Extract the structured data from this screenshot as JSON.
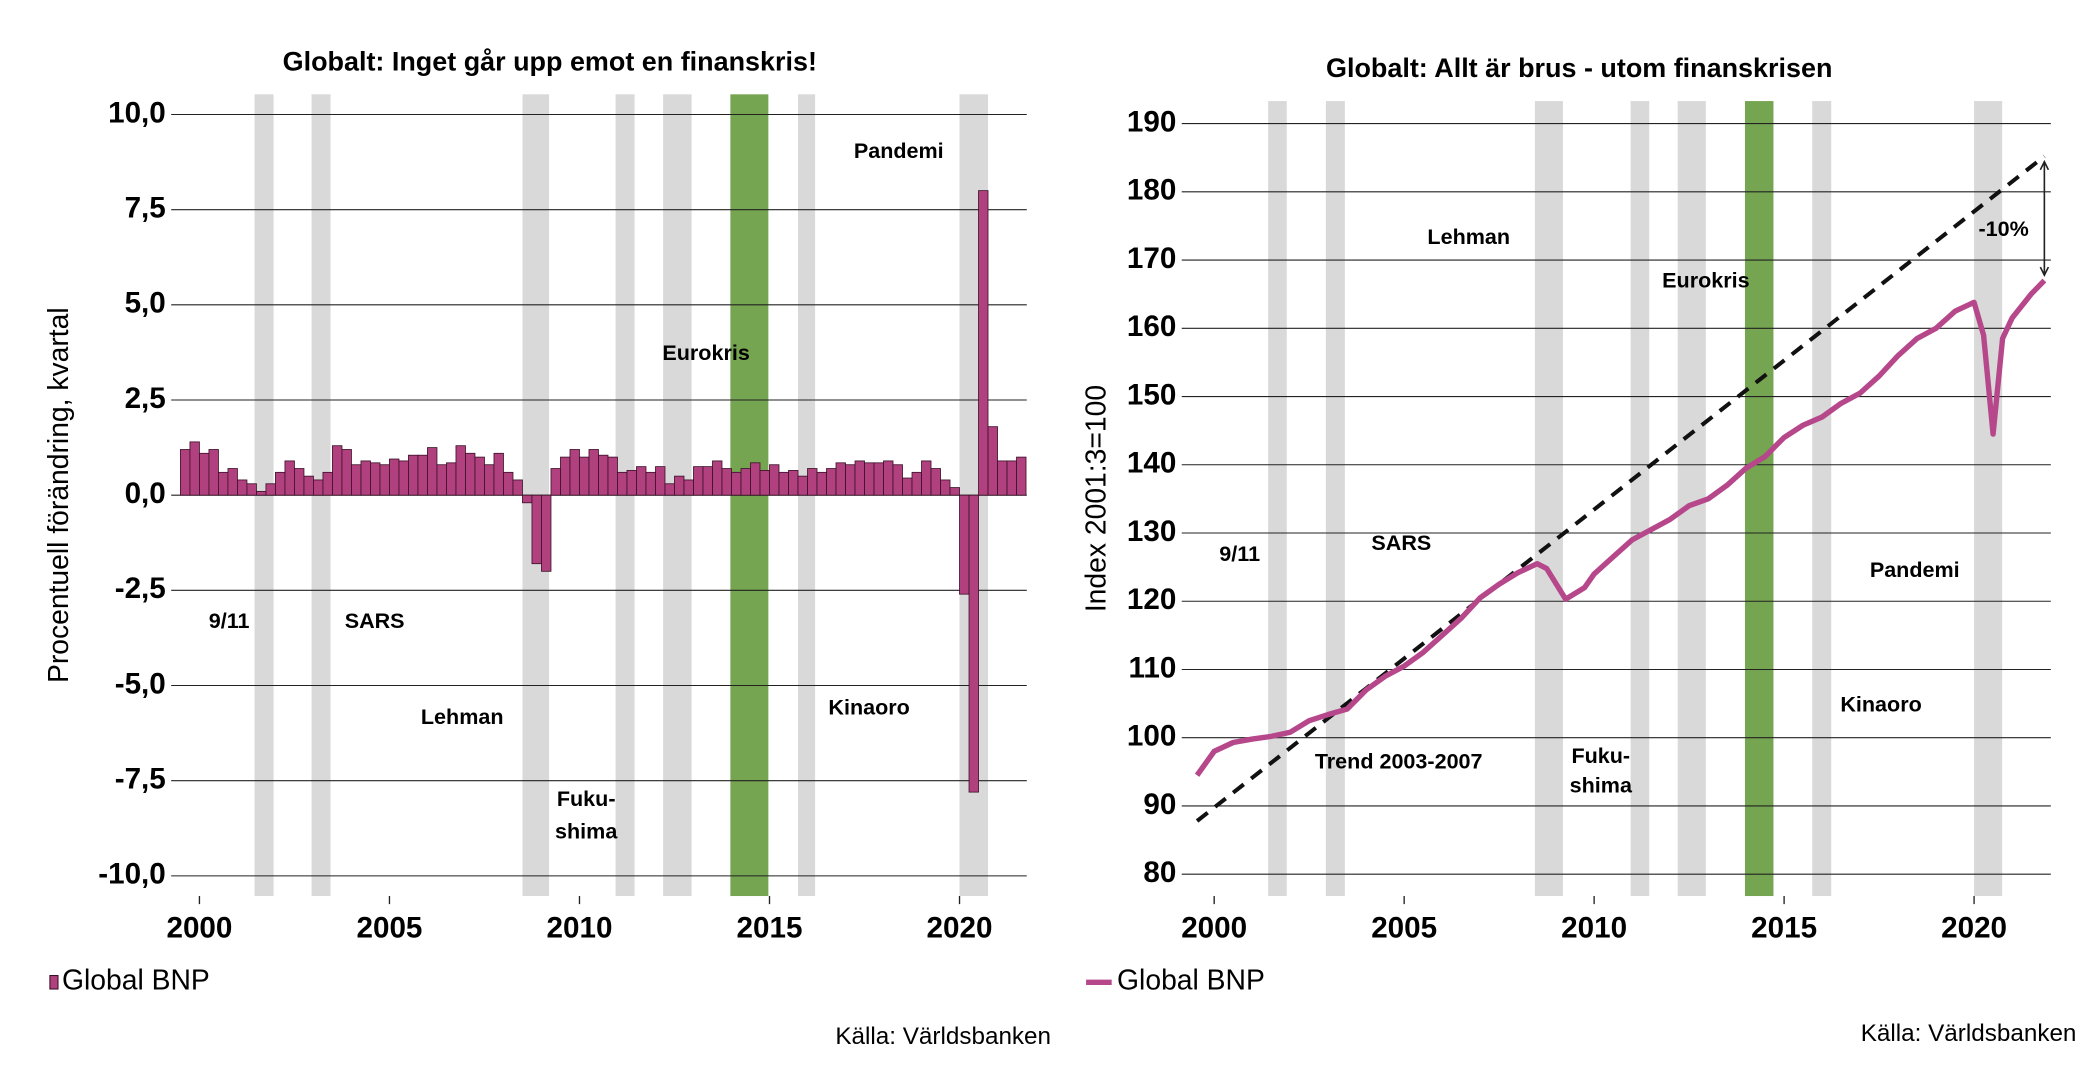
{
  "chart_data": [
    {
      "type": "bar",
      "title": "Globalt: Inget går upp emot en finanskris!",
      "ylabel": "Procentuell förändring, kvartal",
      "source": "Källa: Världsbanken",
      "xlim": [
        1999.54,
        2021.77
      ],
      "xticks": [
        2000,
        2005,
        2010,
        2015,
        2020
      ],
      "ylim": [
        -10.53,
        10.53
      ],
      "yticks": [
        {
          "value": -10,
          "label": "-10,0"
        },
        {
          "value": -7.5,
          "label": "-7,5"
        },
        {
          "value": -5,
          "label": "-5,0"
        },
        {
          "value": -2.5,
          "label": "-2,5"
        },
        {
          "value": 0,
          "label": "0,0"
        },
        {
          "value": 2.5,
          "label": "2,5"
        },
        {
          "value": 5,
          "label": "5,0"
        },
        {
          "value": 7.5,
          "label": "7,5"
        },
        {
          "value": 10,
          "label": "10,0"
        }
      ],
      "grid": true,
      "shaded_periods": [
        {
          "start": 2001.45,
          "end": 2001.95,
          "color": "#d9d9d9"
        },
        {
          "start": 2002.95,
          "end": 2003.45,
          "color": "#d9d9d9"
        },
        {
          "start": 2008.5,
          "end": 2009.2,
          "color": "#d9d9d9"
        },
        {
          "start": 2010.95,
          "end": 2011.45,
          "color": "#d9d9d9"
        },
        {
          "start": 2012.2,
          "end": 2012.95,
          "color": "#d9d9d9"
        },
        {
          "start": 2013.97,
          "end": 2014.97,
          "color": "#76a552"
        },
        {
          "start": 2015.75,
          "end": 2016.2,
          "color": "#d9d9d9"
        },
        {
          "start": 2020.0,
          "end": 2020.75,
          "color": "#d9d9d9"
        }
      ],
      "annotations": [
        "9/11",
        "SARS",
        "Lehman",
        "Fuku-",
        "shima",
        "Eurokris",
        "Kinaoro",
        "Pandemi"
      ],
      "series": [
        {
          "name": "Global BNP",
          "color": "#b0407e",
          "x": [
            1999.5,
            1999.75,
            2000,
            2000.25,
            2000.5,
            2000.75,
            2001,
            2001.25,
            2001.5,
            2001.75,
            2002,
            2002.25,
            2002.5,
            2002.75,
            2003,
            2003.25,
            2003.5,
            2003.75,
            2004,
            2004.25,
            2004.5,
            2004.75,
            2005,
            2005.25,
            2005.5,
            2005.75,
            2006,
            2006.25,
            2006.5,
            2006.75,
            2007,
            2007.25,
            2007.5,
            2007.75,
            2008,
            2008.25,
            2008.5,
            2008.75,
            2009,
            2009.25,
            2009.5,
            2009.75,
            2010,
            2010.25,
            2010.5,
            2010.75,
            2011,
            2011.25,
            2011.5,
            2011.75,
            2012,
            2012.25,
            2012.5,
            2012.75,
            2013,
            2013.25,
            2013.5,
            2013.75,
            2014,
            2014.25,
            2014.5,
            2014.75,
            2015,
            2015.25,
            2015.5,
            2015.75,
            2016,
            2016.25,
            2016.5,
            2016.75,
            2017,
            2017.25,
            2017.5,
            2017.75,
            2018,
            2018.25,
            2018.5,
            2018.75,
            2019,
            2019.25,
            2019.5,
            2019.75,
            2020,
            2020.25,
            2020.5,
            2020.75,
            2021,
            2021.25,
            2021.5
          ],
          "values": [
            1.2,
            1.4,
            1.1,
            1.2,
            0.6,
            0.7,
            0.4,
            0.3,
            0.1,
            0.3,
            0.6,
            0.9,
            0.7,
            0.5,
            0.4,
            0.6,
            1.3,
            1.2,
            0.8,
            0.9,
            0.85,
            0.8,
            0.95,
            0.9,
            1.05,
            1.05,
            1.25,
            0.8,
            0.85,
            1.3,
            1.1,
            1.0,
            0.8,
            1.1,
            0.6,
            0.4,
            -0.2,
            -1.8,
            -2.0,
            0.7,
            1.0,
            1.2,
            1.0,
            1.2,
            1.05,
            1.0,
            0.6,
            0.65,
            0.75,
            0.6,
            0.75,
            0.3,
            0.5,
            0.4,
            0.75,
            0.75,
            0.9,
            0.7,
            0.6,
            0.7,
            0.85,
            0.65,
            0.8,
            0.6,
            0.65,
            0.5,
            0.7,
            0.6,
            0.7,
            0.85,
            0.8,
            0.9,
            0.85,
            0.85,
            0.9,
            0.8,
            0.45,
            0.6,
            0.9,
            0.7,
            0.4,
            0.2,
            -2.6,
            -7.8,
            8.0,
            1.8,
            0.9,
            0.9,
            1.0
          ]
        }
      ]
    },
    {
      "type": "line",
      "title": "Globalt: Allt är brus - utom finanskrisen",
      "ylabel": "Index 2001:3=100",
      "source": "Källa: Världsbanken",
      "xlim": [
        1999.43,
        2022.02
      ],
      "xticks": [
        2000,
        2005,
        2010,
        2015,
        2020
      ],
      "ylim": [
        76.8,
        193.3
      ],
      "yticks": [
        80,
        90,
        100,
        110,
        120,
        130,
        140,
        150,
        160,
        170,
        180,
        190
      ],
      "grid": true,
      "shaded_periods": [
        {
          "start": 2001.42,
          "end": 2001.91,
          "color": "#d9d9d9"
        },
        {
          "start": 2002.94,
          "end": 2003.44,
          "color": "#d9d9d9"
        },
        {
          "start": 2008.44,
          "end": 2009.18,
          "color": "#d9d9d9"
        },
        {
          "start": 2010.96,
          "end": 2011.45,
          "color": "#d9d9d9"
        },
        {
          "start": 2012.2,
          "end": 2012.94,
          "color": "#d9d9d9"
        },
        {
          "start": 2013.97,
          "end": 2014.72,
          "color": "#76a552"
        },
        {
          "start": 2015.74,
          "end": 2016.24,
          "color": "#d9d9d9"
        },
        {
          "start": 2020.0,
          "end": 2020.74,
          "color": "#d9d9d9"
        }
      ],
      "annotations": [
        "9/11",
        "SARS",
        "Lehman",
        "Fuku-",
        "shima",
        "Eurokris",
        "Kinaoro",
        "Pandemi",
        "Trend 2003-2007",
        "-10%"
      ],
      "trend": {
        "color": "#111111",
        "x": [
          1999.55,
          2021.85
        ],
        "values": [
          87.8,
          185.2
        ]
      },
      "series": [
        {
          "name": "Global BNP",
          "color": "#b5478a",
          "x": [
            1999.55,
            2000,
            2000.5,
            2001,
            2001.5,
            2002,
            2002.5,
            2003,
            2003.5,
            2004,
            2004.5,
            2005,
            2005.5,
            2006,
            2006.5,
            2007,
            2007.5,
            2008,
            2008.5,
            2008.75,
            2009.25,
            2009.75,
            2010,
            2010.5,
            2011,
            2011.5,
            2012,
            2012.5,
            2013,
            2013.5,
            2014,
            2014.5,
            2015,
            2015.5,
            2016,
            2016.5,
            2017,
            2017.5,
            2018,
            2018.5,
            2019,
            2019.5,
            2020,
            2020.25,
            2020.5,
            2020.75,
            2021,
            2021.5,
            2021.85
          ],
          "values": [
            94.5,
            98,
            99.3,
            99.8,
            100.2,
            100.8,
            102.5,
            103.4,
            104.2,
            107,
            109,
            110.5,
            112.5,
            115,
            117.5,
            120.5,
            122.5,
            124.2,
            125.5,
            124.8,
            120.3,
            122,
            124,
            126.5,
            129,
            130.5,
            132,
            134,
            135,
            137,
            139.5,
            141.2,
            144,
            145.8,
            147,
            149,
            150.5,
            153,
            156,
            158.5,
            160,
            162.5,
            163.8,
            159,
            144.5,
            158.5,
            161.5,
            165,
            167
          ]
        }
      ]
    }
  ]
}
